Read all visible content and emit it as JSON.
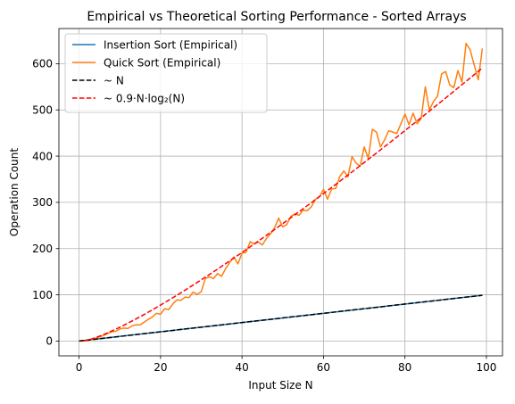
{
  "chart_data": {
    "type": "line",
    "title": "Empirical vs Theoretical Sorting Performance - Sorted Arrays",
    "xlabel": "Input Size N",
    "ylabel": "Operation Count",
    "xlim": [
      -4.95,
      103.95
    ],
    "ylim": [
      -32,
      676
    ],
    "xticks": [
      0,
      20,
      40,
      60,
      80,
      100
    ],
    "yticks": [
      0,
      100,
      200,
      300,
      400,
      500,
      600
    ],
    "grid": true,
    "legend_position": "top-left",
    "series": [
      {
        "name": "Insertion Sort (Empirical)",
        "color": "#1f77b4",
        "style": "solid",
        "x": [
          0,
          99
        ],
        "y": [
          0,
          99
        ]
      },
      {
        "name": "Quick Sort (Empirical)",
        "color": "#ff7f0e",
        "style": "solid",
        "x": [
          0,
          1,
          2,
          3,
          4,
          5,
          6,
          7,
          8,
          9,
          10,
          11,
          12,
          13,
          14,
          15,
          16,
          17,
          18,
          19,
          20,
          21,
          22,
          23,
          24,
          25,
          26,
          27,
          28,
          29,
          30,
          31,
          32,
          33,
          34,
          35,
          36,
          37,
          38,
          39,
          40,
          41,
          42,
          43,
          44,
          45,
          46,
          47,
          48,
          49,
          50,
          51,
          52,
          53,
          54,
          55,
          56,
          57,
          58,
          59,
          60,
          61,
          62,
          63,
          64,
          65,
          66,
          67,
          68,
          69,
          70,
          71,
          72,
          73,
          74,
          75,
          76,
          77,
          78,
          79,
          80,
          81,
          82,
          83,
          84,
          85,
          86,
          87,
          88,
          89,
          90,
          91,
          92,
          93,
          94,
          95,
          96,
          97,
          98,
          99
        ],
        "y": [
          0,
          0,
          1,
          3,
          6,
          9,
          12,
          16,
          20,
          21,
          26,
          28,
          27,
          33,
          35,
          35,
          41,
          47,
          52,
          60,
          58,
          70,
          68,
          80,
          89,
          88,
          95,
          94,
          106,
          101,
          107,
          135,
          139,
          135,
          146,
          140,
          157,
          170,
          182,
          167,
          190,
          192,
          215,
          210,
          214,
          208,
          222,
          232,
          245,
          266,
          247,
          252,
          270,
          275,
          272,
          283,
          282,
          290,
          306,
          312,
          328,
          307,
          329,
          330,
          356,
          368,
          355,
          399,
          385,
          378,
          420,
          395,
          458,
          452,
          420,
          435,
          455,
          452,
          449,
          470,
          491,
          468,
          493,
          470,
          482,
          550,
          500,
          518,
          530,
          578,
          583,
          554,
          548,
          585,
          560,
          644,
          630,
          597,
          565,
          633
        ]
      },
      {
        "name": "~ N",
        "color": "#000000",
        "style": "dashed",
        "x": [
          0,
          99
        ],
        "y": [
          0,
          99
        ]
      },
      {
        "name": "~ 0.9·N·log₂(N)",
        "color": "#ff0000",
        "style": "dashed",
        "formula": "0.9*N*log2(N)",
        "x_range": [
          1,
          99
        ]
      }
    ]
  }
}
